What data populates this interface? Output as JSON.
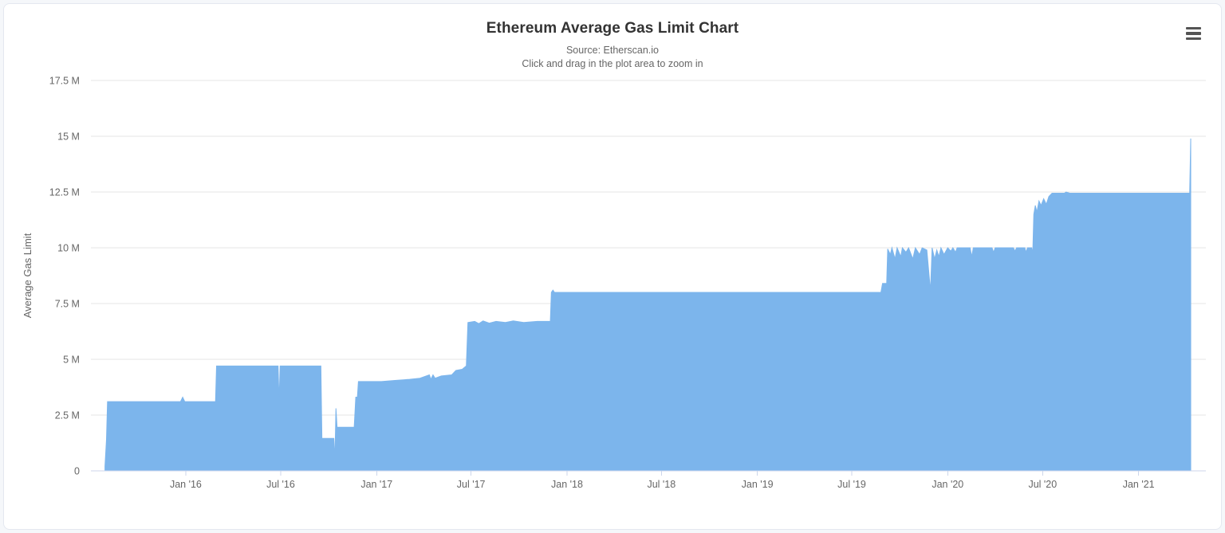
{
  "page": {
    "background_color": "#f5f7fa",
    "card_background": "#ffffff",
    "card_border_color": "#e4e8f0"
  },
  "toolbar": {
    "context_menu_icon": "hamburger-menu"
  },
  "chart_data": {
    "type": "area",
    "title": "Ethereum Average Gas Limit Chart",
    "subtitle_line1": "Source: Etherscan.io",
    "subtitle_line2": "Click and drag in the plot area to zoom in",
    "xlabel": "",
    "ylabel": "Average Gas Limit",
    "unit": "million gas",
    "grid": "horizontal",
    "legend": "none",
    "ylim": [
      0,
      17.5
    ],
    "yticks": [
      {
        "v": 0,
        "label": "0"
      },
      {
        "v": 2.5,
        "label": "2.5 M"
      },
      {
        "v": 5,
        "label": "5 M"
      },
      {
        "v": 7.5,
        "label": "7.5 M"
      },
      {
        "v": 10,
        "label": "10 M"
      },
      {
        "v": 12.5,
        "label": "12.5 M"
      },
      {
        "v": 15,
        "label": "15 M"
      },
      {
        "v": 17.5,
        "label": "17.5 M"
      }
    ],
    "xlim": [
      "2015-07-03",
      "2021-05-10"
    ],
    "xticks": [
      {
        "date": "2016-01-01",
        "label": "Jan '16"
      },
      {
        "date": "2016-07-01",
        "label": "Jul '16"
      },
      {
        "date": "2017-01-01",
        "label": "Jan '17"
      },
      {
        "date": "2017-07-01",
        "label": "Jul '17"
      },
      {
        "date": "2018-01-01",
        "label": "Jan '18"
      },
      {
        "date": "2018-07-01",
        "label": "Jul '18"
      },
      {
        "date": "2019-01-01",
        "label": "Jan '19"
      },
      {
        "date": "2019-07-01",
        "label": "Jul '19"
      },
      {
        "date": "2020-01-01",
        "label": "Jan '20"
      },
      {
        "date": "2020-07-01",
        "label": "Jul '20"
      },
      {
        "date": "2021-01-01",
        "label": "Jan '21"
      }
    ],
    "colors": {
      "area": "#7cb5ec",
      "grid": "#e6e6e6",
      "axis_line": "#ccd6eb",
      "label": "#666666",
      "title": "#333333"
    },
    "series": [
      [
        "2015-07-30",
        0.2
      ],
      [
        "2015-08-02",
        1.4
      ],
      [
        "2015-08-04",
        3.1
      ],
      [
        "2015-12-22",
        3.1
      ],
      [
        "2015-12-26",
        3.3
      ],
      [
        "2015-12-30",
        3.1
      ],
      [
        "2016-02-27",
        3.1
      ],
      [
        "2016-02-29",
        4.7
      ],
      [
        "2016-06-26",
        4.7
      ],
      [
        "2016-06-28",
        3.1
      ],
      [
        "2016-06-30",
        4.7
      ],
      [
        "2016-09-16",
        4.7
      ],
      [
        "2016-09-18",
        1.45
      ],
      [
        "2016-10-11",
        1.45
      ],
      [
        "2016-10-13",
        0.45
      ],
      [
        "2016-10-15",
        2.8
      ],
      [
        "2016-10-17",
        1.95
      ],
      [
        "2016-11-19",
        1.95
      ],
      [
        "2016-11-22",
        3.3
      ],
      [
        "2016-11-25",
        3.3
      ],
      [
        "2016-11-27",
        4.0
      ],
      [
        "2017-01-10",
        4.0
      ],
      [
        "2017-02-05",
        4.05
      ],
      [
        "2017-03-05",
        4.1
      ],
      [
        "2017-03-25",
        4.15
      ],
      [
        "2017-04-12",
        4.3
      ],
      [
        "2017-04-15",
        4.1
      ],
      [
        "2017-04-19",
        4.3
      ],
      [
        "2017-04-23",
        4.15
      ],
      [
        "2017-05-05",
        4.25
      ],
      [
        "2017-05-25",
        4.3
      ],
      [
        "2017-06-02",
        4.5
      ],
      [
        "2017-06-14",
        4.55
      ],
      [
        "2017-06-22",
        4.7
      ],
      [
        "2017-06-25",
        6.65
      ],
      [
        "2017-07-08",
        6.7
      ],
      [
        "2017-07-16",
        6.6
      ],
      [
        "2017-07-24",
        6.72
      ],
      [
        "2017-08-05",
        6.62
      ],
      [
        "2017-08-18",
        6.7
      ],
      [
        "2017-09-05",
        6.65
      ],
      [
        "2017-09-20",
        6.72
      ],
      [
        "2017-10-10",
        6.65
      ],
      [
        "2017-11-05",
        6.7
      ],
      [
        "2017-11-30",
        6.7
      ],
      [
        "2017-12-02",
        8.0
      ],
      [
        "2017-12-05",
        8.1
      ],
      [
        "2017-12-08",
        8.0
      ],
      [
        "2019-08-26",
        8.0
      ],
      [
        "2019-08-29",
        8.4
      ],
      [
        "2019-09-06",
        8.4
      ],
      [
        "2019-09-08",
        9.95
      ],
      [
        "2019-09-13",
        9.7
      ],
      [
        "2019-09-16",
        10.0
      ],
      [
        "2019-09-22",
        9.5
      ],
      [
        "2019-09-26",
        10.0
      ],
      [
        "2019-10-03",
        9.6
      ],
      [
        "2019-10-06",
        10.0
      ],
      [
        "2019-10-13",
        9.8
      ],
      [
        "2019-10-18",
        10.0
      ],
      [
        "2019-10-26",
        9.5
      ],
      [
        "2019-10-31",
        10.0
      ],
      [
        "2019-11-08",
        9.7
      ],
      [
        "2019-11-13",
        10.0
      ],
      [
        "2019-11-22",
        9.9
      ],
      [
        "2019-11-29",
        8.05
      ],
      [
        "2019-12-02",
        10.0
      ],
      [
        "2019-12-07",
        9.5
      ],
      [
        "2019-12-11",
        9.9
      ],
      [
        "2019-12-15",
        9.6
      ],
      [
        "2019-12-19",
        10.0
      ],
      [
        "2019-12-25",
        9.7
      ],
      [
        "2020-01-01",
        10.0
      ],
      [
        "2020-01-07",
        9.85
      ],
      [
        "2020-01-11",
        10.0
      ],
      [
        "2020-01-16",
        9.8
      ],
      [
        "2020-01-19",
        10.0
      ],
      [
        "2020-02-13",
        10.0
      ],
      [
        "2020-02-16",
        9.6
      ],
      [
        "2020-02-19",
        10.0
      ],
      [
        "2020-03-26",
        10.0
      ],
      [
        "2020-03-29",
        9.8
      ],
      [
        "2020-04-01",
        10.0
      ],
      [
        "2020-05-06",
        10.0
      ],
      [
        "2020-05-09",
        9.85
      ],
      [
        "2020-05-12",
        10.0
      ],
      [
        "2020-05-28",
        10.0
      ],
      [
        "2020-05-30",
        9.8
      ],
      [
        "2020-06-02",
        10.0
      ],
      [
        "2020-06-10",
        10.0
      ],
      [
        "2020-06-12",
        9.75
      ],
      [
        "2020-06-14",
        11.5
      ],
      [
        "2020-06-17",
        11.9
      ],
      [
        "2020-06-20",
        11.6
      ],
      [
        "2020-06-24",
        12.1
      ],
      [
        "2020-06-28",
        11.9
      ],
      [
        "2020-07-03",
        12.2
      ],
      [
        "2020-07-08",
        11.95
      ],
      [
        "2020-07-13",
        12.3
      ],
      [
        "2020-07-19",
        12.45
      ],
      [
        "2020-08-12",
        12.45
      ],
      [
        "2020-08-15",
        12.5
      ],
      [
        "2020-08-22",
        12.45
      ],
      [
        "2021-04-09",
        12.45
      ],
      [
        "2021-04-11",
        14.9
      ]
    ]
  }
}
